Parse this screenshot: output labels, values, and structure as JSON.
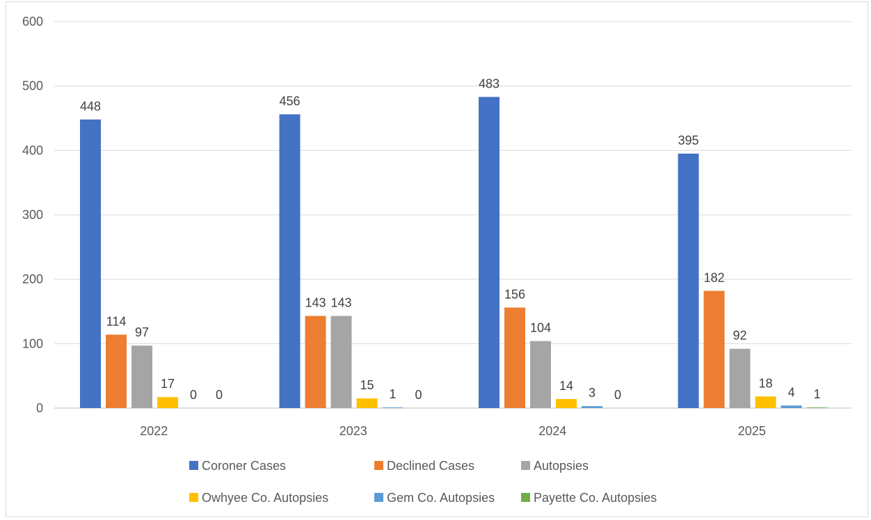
{
  "chart_data": {
    "type": "bar",
    "title": "",
    "xlabel": "",
    "ylabel": "",
    "categories": [
      "2022",
      "2023",
      "2024",
      "2025"
    ],
    "ylim": [
      0,
      600
    ],
    "yticks": [
      0,
      100,
      200,
      300,
      400,
      500,
      600
    ],
    "grid": "horizontal",
    "legend_position": "bottom",
    "series": [
      {
        "name": "Coroner Cases",
        "color": "#4472C4",
        "values": [
          448,
          456,
          483,
          395
        ]
      },
      {
        "name": "Declined Cases",
        "color": "#ED7D31",
        "values": [
          114,
          143,
          156,
          182
        ]
      },
      {
        "name": "Autopsies",
        "color": "#A5A5A5",
        "values": [
          97,
          143,
          104,
          92
        ]
      },
      {
        "name": "Owhyee Co. Autopsies",
        "color": "#FFC000",
        "values": [
          17,
          15,
          14,
          18
        ]
      },
      {
        "name": "Gem Co. Autopsies",
        "color": "#5B9BD5",
        "values": [
          0,
          1,
          3,
          4
        ]
      },
      {
        "name": "Payette Co. Autopsies",
        "color": "#70AD47",
        "values": [
          0,
          0,
          0,
          1
        ]
      }
    ]
  }
}
